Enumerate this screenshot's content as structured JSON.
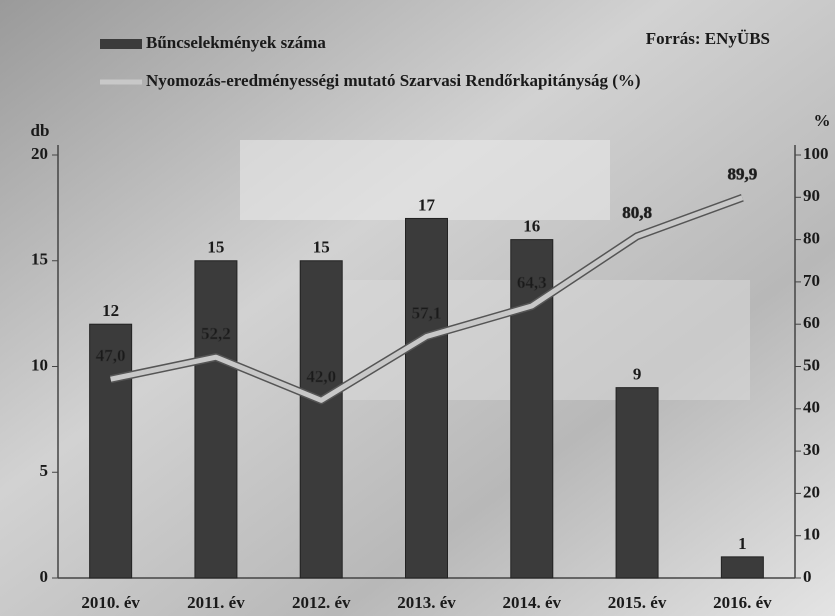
{
  "chart_data": {
    "type": "bar",
    "source": "Forrás: ENyÜBS",
    "y_unit": "db",
    "y2_unit": "%",
    "categories": [
      "2010. év",
      "2011. év",
      "2012. év",
      "2013. év",
      "2014. év",
      "2015. év",
      "2016. év"
    ],
    "series": [
      {
        "name": "Bűncselekmények száma",
        "type": "bar",
        "color": "#3b3b3b",
        "values": [
          12,
          15,
          15,
          17,
          16,
          9,
          1
        ]
      },
      {
        "name": "Nyomozás-eredményességi mutató Szarvasi Rendőrkapitányság (%)",
        "type": "line",
        "axis": "y2",
        "color": "#c8c8c8",
        "values": [
          47.0,
          52.2,
          42.0,
          57.1,
          64.3,
          80.8,
          89.9
        ],
        "value_labels": [
          "47,0",
          "52,2",
          "42,0",
          "57,1",
          "64,3",
          "80,8",
          "89,9"
        ]
      }
    ],
    "ylim": [
      0,
      20
    ],
    "yticks": [
      0,
      5,
      10,
      15,
      20
    ],
    "y2lim": [
      0,
      100
    ],
    "y2ticks": [
      0,
      10,
      20,
      30,
      40,
      50,
      60,
      70,
      80,
      90,
      100
    ],
    "legend": "top-left"
  }
}
